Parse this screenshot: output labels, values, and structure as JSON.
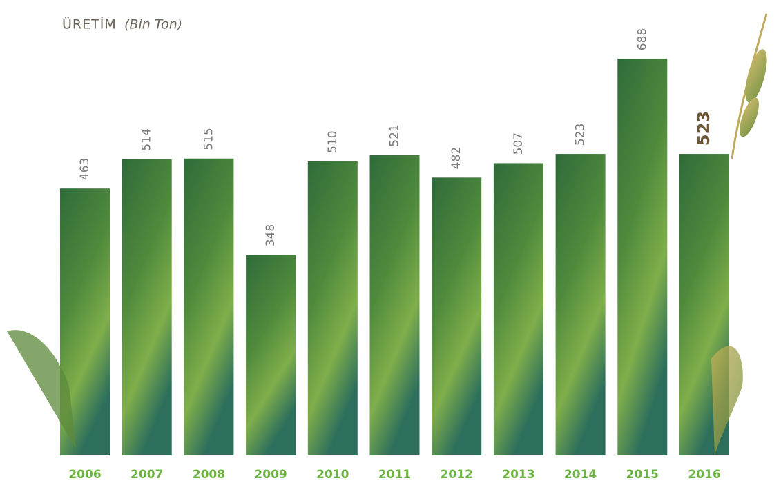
{
  "chart_data": {
    "type": "bar",
    "title": "ÜRETİM",
    "subtitle": "(Bin Ton)",
    "categories": [
      "2006",
      "2007",
      "2008",
      "2009",
      "2010",
      "2011",
      "2012",
      "2013",
      "2014",
      "2015",
      "2016"
    ],
    "values": [
      463,
      514,
      515,
      348,
      510,
      521,
      482,
      507,
      523,
      688,
      523
    ],
    "color": "#4f8a3c",
    "ylim": [
      0,
      790
    ]
  }
}
